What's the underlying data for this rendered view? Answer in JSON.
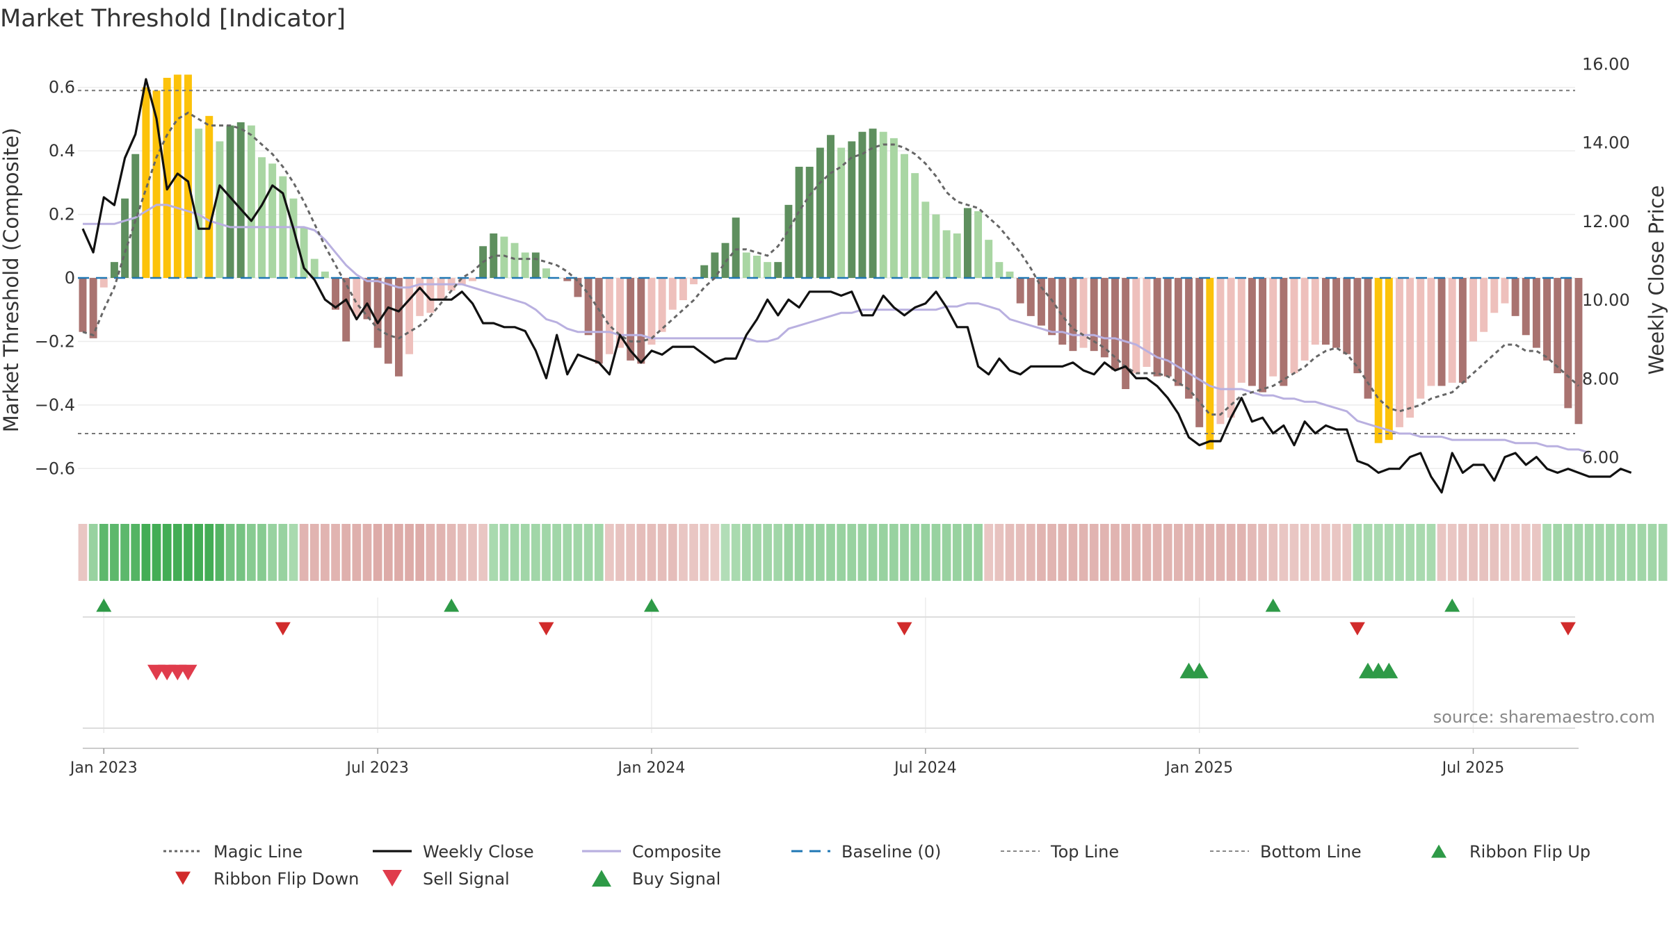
{
  "chart_data": {
    "type": "bar",
    "title": "Market Threshold [Indicator]",
    "ylabel": "Market Threshold (Composite)",
    "y2label": "Weekly Close Price",
    "ylim": [
      -0.7,
      0.7
    ],
    "y2lim": [
      4.9,
      16.2
    ],
    "yticks": [
      "0.6",
      "0.4",
      "0.2",
      "0",
      "−0.2",
      "−0.4",
      "−0.6"
    ],
    "yticks_values": [
      0.6,
      0.4,
      0.2,
      0,
      -0.2,
      -0.4,
      -0.6
    ],
    "y2ticks": [
      "16.00",
      "14.00",
      "12.00",
      "10.00",
      "8.00",
      "6.00"
    ],
    "y2ticks_values": [
      16,
      14,
      12,
      10,
      8,
      6
    ],
    "xticks": [
      "Jan 2023",
      "Jul 2023",
      "Jan 2024",
      "Jul 2024",
      "Jan 2025",
      "Jul 2025"
    ],
    "xticks_week": [
      2,
      28,
      54,
      80,
      106,
      132
    ],
    "weeks_count": 143,
    "top_line": 0.59,
    "bottom_line": -0.49,
    "histogram": [
      -0.17,
      -0.19,
      -0.03,
      0.05,
      0.25,
      0.39,
      0.6,
      0.59,
      0.63,
      0.64,
      0.64,
      0.47,
      0.51,
      0.43,
      0.48,
      0.49,
      0.48,
      0.38,
      0.36,
      0.32,
      0.25,
      0.16,
      0.06,
      0.02,
      -0.1,
      -0.2,
      -0.12,
      -0.13,
      -0.22,
      -0.27,
      -0.31,
      -0.24,
      -0.12,
      -0.11,
      -0.07,
      -0.04,
      -0.02,
      -0.01,
      0.1,
      0.14,
      0.13,
      0.11,
      0.08,
      0.08,
      0.03,
      0.0,
      -0.01,
      -0.06,
      -0.18,
      -0.27,
      -0.24,
      -0.22,
      -0.26,
      -0.27,
      -0.21,
      -0.17,
      -0.1,
      -0.07,
      -0.02,
      0.04,
      0.08,
      0.11,
      0.19,
      0.08,
      0.07,
      0.05,
      0.05,
      0.23,
      0.35,
      0.35,
      0.41,
      0.45,
      0.41,
      0.43,
      0.46,
      0.47,
      0.46,
      0.44,
      0.39,
      0.33,
      0.24,
      0.2,
      0.15,
      0.14,
      0.22,
      0.21,
      0.12,
      0.05,
      0.02,
      -0.08,
      -0.12,
      -0.15,
      -0.18,
      -0.21,
      -0.23,
      -0.22,
      -0.23,
      -0.25,
      -0.29,
      -0.35,
      -0.3,
      -0.28,
      -0.31,
      -0.31,
      -0.34,
      -0.38,
      -0.47,
      -0.54,
      -0.46,
      -0.44,
      -0.33,
      -0.34,
      -0.36,
      -0.31,
      -0.34,
      -0.3,
      -0.26,
      -0.21,
      -0.21,
      -0.22,
      -0.24,
      -0.3,
      -0.38,
      -0.52,
      -0.51,
      -0.47,
      -0.44,
      -0.38,
      -0.34,
      -0.34,
      -0.33,
      -0.33,
      -0.2,
      -0.17,
      -0.11,
      -0.08,
      -0.12,
      -0.18,
      -0.22,
      -0.26,
      -0.3,
      -0.41,
      -0.46
    ],
    "series": [
      {
        "name": "Magic Line",
        "color": "#666666",
        "values": [
          -0.17,
          -0.18,
          -0.1,
          -0.03,
          0.08,
          0.18,
          0.28,
          0.38,
          0.45,
          0.5,
          0.52,
          0.5,
          0.48,
          0.48,
          0.48,
          0.47,
          0.45,
          0.42,
          0.39,
          0.35,
          0.3,
          0.24,
          0.17,
          0.1,
          0.04,
          -0.02,
          -0.08,
          -0.12,
          -0.16,
          -0.18,
          -0.19,
          -0.17,
          -0.15,
          -0.12,
          -0.08,
          -0.04,
          0.0,
          0.02,
          0.05,
          0.07,
          0.07,
          0.06,
          0.06,
          0.06,
          0.05,
          0.04,
          0.02,
          -0.01,
          -0.05,
          -0.1,
          -0.15,
          -0.18,
          -0.2,
          -0.2,
          -0.19,
          -0.16,
          -0.13,
          -0.1,
          -0.07,
          -0.03,
          0.0,
          0.05,
          0.09,
          0.09,
          0.08,
          0.07,
          0.1,
          0.15,
          0.21,
          0.26,
          0.3,
          0.33,
          0.35,
          0.38,
          0.39,
          0.41,
          0.42,
          0.42,
          0.41,
          0.39,
          0.36,
          0.32,
          0.27,
          0.24,
          0.23,
          0.22,
          0.19,
          0.16,
          0.12,
          0.08,
          0.03,
          -0.03,
          -0.07,
          -0.12,
          -0.16,
          -0.18,
          -0.2,
          -0.22,
          -0.25,
          -0.28,
          -0.3,
          -0.3,
          -0.3,
          -0.31,
          -0.33,
          -0.35,
          -0.39,
          -0.43,
          -0.43,
          -0.4,
          -0.37,
          -0.36,
          -0.35,
          -0.34,
          -0.32,
          -0.3,
          -0.28,
          -0.25,
          -0.23,
          -0.22,
          -0.24,
          -0.28,
          -0.33,
          -0.38,
          -0.41,
          -0.42,
          -0.41,
          -0.4,
          -0.38,
          -0.37,
          -0.36,
          -0.33,
          -0.3,
          -0.27,
          -0.24,
          -0.21,
          -0.21,
          -0.23,
          -0.23,
          -0.25,
          -0.28,
          -0.31,
          -0.34
        ]
      },
      {
        "name": "Weekly Close",
        "color": "#111111",
        "values": [
          11.8,
          11.2,
          12.6,
          12.4,
          13.6,
          14.2,
          15.6,
          14.6,
          12.8,
          13.2,
          13.0,
          11.8,
          11.8,
          12.9,
          12.6,
          12.3,
          12.0,
          12.4,
          12.9,
          12.7,
          11.8,
          10.8,
          10.5,
          10.0,
          9.8,
          10.0,
          9.5,
          9.9,
          9.4,
          9.8,
          9.7,
          10.0,
          10.3,
          10.0,
          10.0,
          10.0,
          10.2,
          9.9,
          9.4,
          9.4,
          9.3,
          9.3,
          9.2,
          8.7,
          8.0,
          9.1,
          8.1,
          8.6,
          8.5,
          8.4,
          8.1,
          9.1,
          8.7,
          8.4,
          8.7,
          8.6,
          8.8,
          8.8,
          8.8,
          8.6,
          8.4,
          8.5,
          8.5,
          9.1,
          9.5,
          10.0,
          9.6,
          10.0,
          9.8,
          10.2,
          10.2,
          10.2,
          10.1,
          10.2,
          9.6,
          9.6,
          10.1,
          9.8,
          9.6,
          9.8,
          9.9,
          10.2,
          9.8,
          9.3,
          9.3,
          8.3,
          8.1,
          8.5,
          8.2,
          8.1,
          8.3,
          8.3,
          8.3,
          8.3,
          8.4,
          8.2,
          8.1,
          8.4,
          8.2,
          8.3,
          8.0,
          8.0,
          7.8,
          7.5,
          7.1,
          6.5,
          6.3,
          6.4,
          6.4,
          7.0,
          7.5,
          6.9,
          7.0,
          6.6,
          6.8,
          6.3,
          6.9,
          6.6,
          6.8,
          6.7,
          6.7,
          5.9,
          5.8,
          5.6,
          5.7,
          5.7,
          6.0,
          6.1,
          5.5,
          5.1,
          6.1,
          5.6,
          5.8,
          5.8,
          5.4,
          6.0,
          6.1,
          5.8,
          6.0,
          5.7,
          5.6,
          5.7,
          5.6,
          5.5,
          5.5,
          5.5,
          5.7,
          5.6
        ]
      },
      {
        "name": "Composite",
        "color": "#b9b0e0",
        "values": [
          0.17,
          0.17,
          0.17,
          0.17,
          0.18,
          0.19,
          0.21,
          0.23,
          0.23,
          0.22,
          0.21,
          0.2,
          0.18,
          0.17,
          0.16,
          0.16,
          0.16,
          0.16,
          0.16,
          0.16,
          0.16,
          0.16,
          0.15,
          0.12,
          0.08,
          0.04,
          0.01,
          -0.01,
          -0.01,
          -0.02,
          -0.03,
          -0.03,
          -0.02,
          -0.02,
          -0.02,
          -0.02,
          -0.02,
          -0.03,
          -0.04,
          -0.05,
          -0.06,
          -0.07,
          -0.08,
          -0.1,
          -0.13,
          -0.14,
          -0.16,
          -0.17,
          -0.17,
          -0.17,
          -0.17,
          -0.18,
          -0.18,
          -0.18,
          -0.19,
          -0.19,
          -0.19,
          -0.19,
          -0.19,
          -0.19,
          -0.19,
          -0.19,
          -0.19,
          -0.19,
          -0.2,
          -0.2,
          -0.19,
          -0.16,
          -0.15,
          -0.14,
          -0.13,
          -0.12,
          -0.11,
          -0.11,
          -0.1,
          -0.1,
          -0.1,
          -0.1,
          -0.1,
          -0.1,
          -0.1,
          -0.1,
          -0.09,
          -0.09,
          -0.08,
          -0.08,
          -0.09,
          -0.1,
          -0.13,
          -0.14,
          -0.15,
          -0.16,
          -0.17,
          -0.17,
          -0.18,
          -0.18,
          -0.18,
          -0.19,
          -0.19,
          -0.2,
          -0.21,
          -0.23,
          -0.25,
          -0.26,
          -0.28,
          -0.3,
          -0.32,
          -0.34,
          -0.35,
          -0.35,
          -0.35,
          -0.36,
          -0.37,
          -0.37,
          -0.38,
          -0.38,
          -0.39,
          -0.39,
          -0.4,
          -0.41,
          -0.42,
          -0.45,
          -0.46,
          -0.47,
          -0.48,
          -0.49,
          -0.49,
          -0.5,
          -0.5,
          -0.5,
          -0.51,
          -0.51,
          -0.51,
          -0.51,
          -0.51,
          -0.51,
          -0.52,
          -0.52,
          -0.52,
          -0.53,
          -0.53,
          -0.54,
          -0.54,
          -0.55
        ]
      }
    ],
    "ribbon": [
      -0.3,
      0.4,
      0.75,
      0.75,
      0.75,
      0.8,
      0.9,
      0.9,
      0.9,
      0.9,
      0.9,
      0.9,
      0.9,
      0.8,
      0.6,
      0.6,
      0.5,
      0.5,
      0.4,
      0.4,
      0.3,
      -0.5,
      -0.5,
      -0.5,
      -0.5,
      -0.55,
      -0.55,
      -0.55,
      -0.6,
      -0.6,
      -0.6,
      -0.6,
      -0.6,
      -0.5,
      -0.5,
      -0.45,
      -0.4,
      -0.35,
      -0.3,
      0.3,
      0.35,
      0.35,
      0.35,
      0.35,
      0.35,
      0.35,
      0.35,
      0.35,
      0.35,
      0.35,
      -0.3,
      -0.35,
      -0.35,
      -0.4,
      -0.4,
      -0.4,
      -0.4,
      -0.3,
      -0.3,
      -0.3,
      -0.25,
      0.25,
      0.3,
      0.35,
      0.35,
      0.35,
      0.35,
      0.4,
      0.4,
      0.4,
      0.4,
      0.4,
      0.4,
      0.4,
      0.4,
      0.4,
      0.4,
      0.4,
      0.4,
      0.4,
      0.4,
      0.4,
      0.4,
      0.4,
      0.4,
      0.4,
      -0.3,
      -0.35,
      -0.4,
      -0.4,
      -0.45,
      -0.5,
      -0.5,
      -0.5,
      -0.5,
      -0.5,
      -0.5,
      -0.5,
      -0.5,
      -0.5,
      -0.5,
      -0.5,
      -0.5,
      -0.5,
      -0.5,
      -0.5,
      -0.5,
      -0.5,
      -0.5,
      -0.5,
      -0.5,
      -0.45,
      -0.4,
      -0.35,
      -0.3,
      -0.3,
      -0.3,
      -0.3,
      -0.3,
      -0.3,
      -0.3,
      0.3,
      0.3,
      0.3,
      0.3,
      0.3,
      0.3,
      0.3,
      0.3,
      -0.3,
      -0.3,
      -0.35,
      -0.35,
      -0.35,
      -0.35,
      -0.3,
      -0.3,
      -0.3,
      -0.3,
      0.3,
      0.35,
      0.35,
      0.35,
      0.35,
      0.35,
      0.35,
      0.35,
      0.35,
      0.35,
      0.35,
      0.35,
      -0.3,
      -0.3,
      -0.3
    ],
    "ribbon_flip_up_weeks": [
      2,
      35,
      54,
      113,
      130
    ],
    "ribbon_flip_down_weeks": [
      19,
      44,
      78,
      121,
      141
    ],
    "sell_signal_weeks": [
      7,
      8,
      9,
      10
    ],
    "buy_signal_weeks": [
      105,
      106,
      122,
      123,
      124
    ],
    "source": "source: sharemaestro.com",
    "legend_placement": "bottom",
    "legend": [
      "Magic Line",
      "Weekly Close",
      "Composite",
      "Baseline (0)",
      "Top Line",
      "Bottom Line",
      "Ribbon Flip Up",
      "Ribbon Flip Down",
      "Sell Signal",
      "Buy Signal"
    ],
    "colors": {
      "bar_dark_green": "#5e8f5e",
      "bar_light_green": "#a9d6a3",
      "bar_dark_red": "#a97370",
      "bar_light_red": "#eec0bc",
      "bar_extreme": "#fcc20a",
      "baseline": "#1f77b4",
      "flip_up": "#2e9a47",
      "flip_down": "#d12b2b",
      "sell": "#e03c4c",
      "buy": "#2e9a47"
    }
  }
}
